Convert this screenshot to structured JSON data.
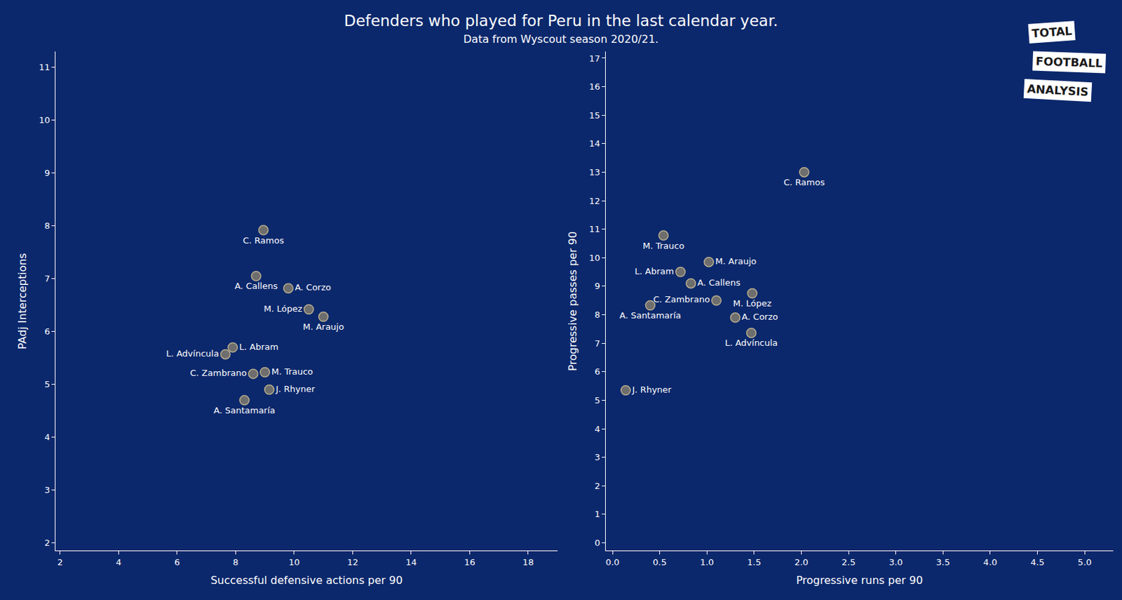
{
  "title": "Defenders who played for Peru in the last calendar year.",
  "subtitle": "Data from Wyscout season 2020/21.",
  "logo": [
    "TOTAL",
    "FOOTBALL",
    "ANALYSIS"
  ],
  "chart_data": [
    {
      "type": "scatter",
      "x_label": "Successful defensive actions per 90",
      "y_label": "PAdj Interceptions",
      "labels": [
        "C. Ramos",
        "A. Callens",
        "A. Corzo",
        "M. López",
        "M. Araujo",
        "L. Abram",
        "L. Advíncula",
        "C. Zambrano",
        "M. Trauco",
        "J. Rhyner",
        "A. Santamaría"
      ],
      "x": [
        8.95,
        8.7,
        9.8,
        10.5,
        11.0,
        7.9,
        7.65,
        8.6,
        9.0,
        9.15,
        8.3
      ],
      "y": [
        7.92,
        7.05,
        6.82,
        6.42,
        6.28,
        5.7,
        5.57,
        5.2,
        5.23,
        4.9,
        4.7
      ],
      "xlim": [
        1.85,
        19
      ],
      "ylim": [
        1.85,
        11.3
      ],
      "xticks": [
        2,
        4,
        6,
        8,
        10,
        12,
        14,
        16,
        18
      ],
      "yticks": [
        2,
        3,
        4,
        5,
        6,
        7,
        8,
        9,
        10,
        11
      ],
      "color": "#6e6e6e",
      "marker": "circle",
      "grid": false
    },
    {
      "type": "scatter",
      "x_label": "Progressive runs per 90",
      "y_label": "Progressive passes per 90",
      "labels": [
        "C. Ramos",
        "M. Trauco",
        "M. Araujo",
        "L. Abram",
        "A. Callens",
        "C. Zambrano",
        "M. López",
        "A. Santamaría",
        "A. Corzo",
        "L. Advíncula",
        "J. Rhyner"
      ],
      "x": [
        2.03,
        0.54,
        1.02,
        0.72,
        0.83,
        1.1,
        1.48,
        0.4,
        1.3,
        1.47,
        0.14
      ],
      "y": [
        13.0,
        10.78,
        9.85,
        9.5,
        9.1,
        8.5,
        8.75,
        8.33,
        7.9,
        7.36,
        5.35
      ],
      "xlim": [
        -0.07,
        5.3
      ],
      "ylim": [
        -0.28,
        17.23
      ],
      "xticks": [
        {
          "value": 0,
          "label": "0.0"
        },
        0.5,
        {
          "value": 1,
          "label": "1.0"
        },
        1.5,
        {
          "value": 2,
          "label": "2.0"
        },
        2.5,
        {
          "value": 3,
          "label": "3.0"
        },
        3.5,
        {
          "value": 4,
          "label": "4.0"
        },
        4.5,
        {
          "value": 5,
          "label": "5.0"
        }
      ],
      "yticks": [
        0,
        1,
        2,
        3,
        4,
        5,
        6,
        7,
        8,
        9,
        10,
        11,
        12,
        13,
        14,
        15,
        16,
        17
      ],
      "color": "#6e6e6e",
      "marker": "circle",
      "grid": false
    }
  ]
}
